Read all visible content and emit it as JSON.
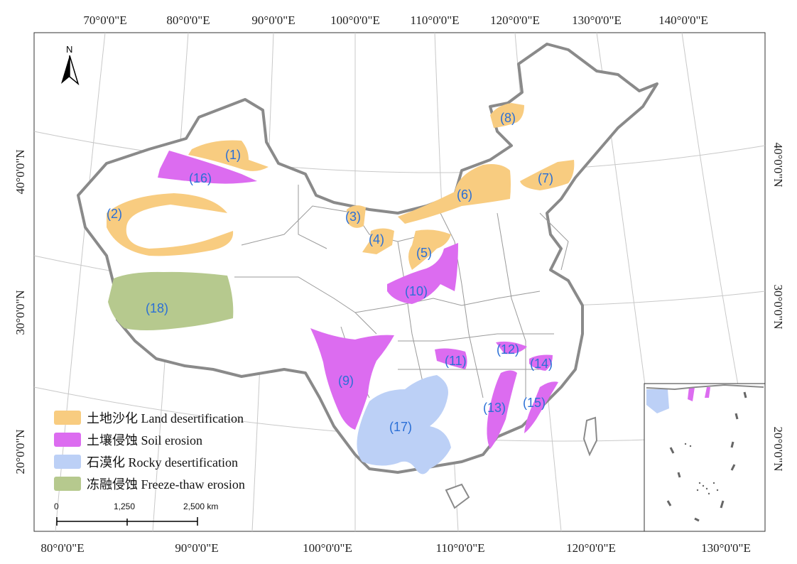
{
  "map": {
    "top_longitude_labels": [
      "70°0'0\"E",
      "80°0'0\"E",
      "90°0'0\"E",
      "100°0'0\"E",
      "110°0'0\"E",
      "120°0'0\"E",
      "130°0'0\"E",
      "140°0'0\"E"
    ],
    "bottom_longitude_labels": [
      "80°0'0\"E",
      "90°0'0\"E",
      "100°0'0\"E",
      "110°0'0\"E",
      "120°0'0\"E",
      "130°0'0\"E"
    ],
    "left_latitude_labels": [
      "40°0'0\"N",
      "30°0'0\"N",
      "20°0'0\"N"
    ],
    "right_latitude_labels": [
      "40°0'0\"N",
      "30°0'0\"N",
      "20°0'0\"N"
    ],
    "north_arrow": {
      "letter": "N",
      "icon": "north-arrow-icon"
    },
    "regions": [
      {
        "label": "(1)",
        "category": "land"
      },
      {
        "label": "(2)",
        "category": "land"
      },
      {
        "label": "(3)",
        "category": "land"
      },
      {
        "label": "(4)",
        "category": "land"
      },
      {
        "label": "(5)",
        "category": "land"
      },
      {
        "label": "(6)",
        "category": "land"
      },
      {
        "label": "(7)",
        "category": "land"
      },
      {
        "label": "(8)",
        "category": "land"
      },
      {
        "label": "(9)",
        "category": "soil"
      },
      {
        "label": "(10)",
        "category": "soil"
      },
      {
        "label": "(11)",
        "category": "soil"
      },
      {
        "label": "(12)",
        "category": "soil"
      },
      {
        "label": "(13)",
        "category": "soil"
      },
      {
        "label": "(14)",
        "category": "soil"
      },
      {
        "label": "(15)",
        "category": "soil"
      },
      {
        "label": "(16)",
        "category": "soil"
      },
      {
        "label": "(17)",
        "category": "rocky"
      },
      {
        "label": "(18)",
        "category": "freeze"
      }
    ],
    "legend": [
      {
        "label": "土地沙化 Land desertification",
        "color": "#f8cc80",
        "category": "land"
      },
      {
        "label": "土壤侵蚀 Soil erosion",
        "color": "#dc6cf0",
        "category": "soil"
      },
      {
        "label": "石漠化 Rocky desertification",
        "color": "#bcd0f6",
        "category": "rocky"
      },
      {
        "label": "冻融侵蚀 Freeze-thaw erosion",
        "color": "#b6c98e",
        "category": "freeze"
      }
    ],
    "scale_bar": {
      "labels": [
        "0",
        "1,250",
        "2,500 km"
      ]
    }
  }
}
